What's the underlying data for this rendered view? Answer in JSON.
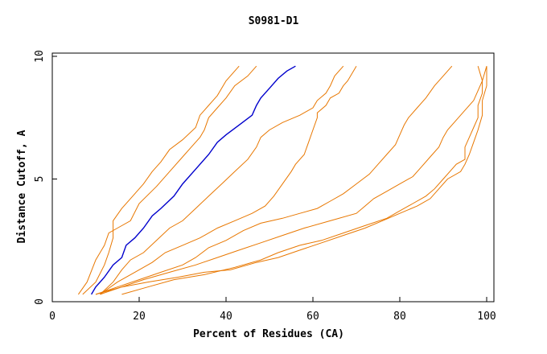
{
  "chart_data": {
    "type": "line",
    "title": "S0981-D1",
    "xlabel": "Percent of Residues (CA)",
    "ylabel": "Distance Cutoff, A",
    "xlim": [
      0,
      100
    ],
    "ylim": [
      0,
      10
    ],
    "xticks": [
      0,
      20,
      40,
      60,
      80,
      100
    ],
    "yticks": [
      0,
      5,
      10
    ],
    "grid": false,
    "legend": "none",
    "colors": {
      "highlight": "#0000cc",
      "other": "#e87700",
      "axis": "#000000"
    },
    "series": [
      {
        "highlight": true,
        "points": [
          [
            9,
            0.3
          ],
          [
            10,
            0.6
          ],
          [
            12,
            1.0
          ],
          [
            14,
            1.5
          ],
          [
            16,
            1.8
          ],
          [
            17,
            2.3
          ],
          [
            19,
            2.6
          ],
          [
            21,
            3.0
          ],
          [
            23,
            3.5
          ],
          [
            25,
            3.8
          ],
          [
            28,
            4.3
          ],
          [
            30,
            4.8
          ],
          [
            33,
            5.4
          ],
          [
            36,
            6.0
          ],
          [
            38,
            6.5
          ],
          [
            40,
            6.8
          ],
          [
            43,
            7.2
          ],
          [
            46,
            7.6
          ],
          [
            47,
            8.0
          ],
          [
            48,
            8.3
          ],
          [
            50,
            8.7
          ],
          [
            52,
            9.1
          ],
          [
            54,
            9.4
          ],
          [
            56,
            9.6
          ]
        ]
      },
      {
        "highlight": false,
        "points": [
          [
            6,
            0.3
          ],
          [
            8,
            0.8
          ],
          [
            10,
            1.7
          ],
          [
            12,
            2.3
          ],
          [
            13,
            2.8
          ],
          [
            15,
            3.0
          ],
          [
            18,
            3.3
          ],
          [
            20,
            4.0
          ],
          [
            24,
            4.7
          ],
          [
            27,
            5.3
          ],
          [
            30,
            5.9
          ],
          [
            32,
            6.3
          ],
          [
            34,
            6.7
          ],
          [
            35,
            7.0
          ],
          [
            36,
            7.5
          ],
          [
            38,
            7.9
          ],
          [
            40,
            8.3
          ],
          [
            42,
            8.8
          ],
          [
            45,
            9.2
          ],
          [
            47,
            9.6
          ]
        ]
      },
      {
        "highlight": false,
        "points": [
          [
            7,
            0.3
          ],
          [
            10,
            0.8
          ],
          [
            12,
            1.5
          ],
          [
            13,
            2.0
          ],
          [
            14,
            2.6
          ],
          [
            14,
            3.3
          ],
          [
            16,
            3.8
          ],
          [
            18,
            4.2
          ],
          [
            21,
            4.8
          ],
          [
            23,
            5.3
          ],
          [
            25,
            5.7
          ],
          [
            27,
            6.2
          ],
          [
            30,
            6.6
          ],
          [
            33,
            7.1
          ],
          [
            34,
            7.6
          ],
          [
            36,
            8.0
          ],
          [
            38,
            8.4
          ],
          [
            40,
            9.0
          ],
          [
            43,
            9.6
          ]
        ]
      },
      {
        "highlight": false,
        "points": [
          [
            11,
            0.3
          ],
          [
            14,
            0.8
          ],
          [
            16,
            1.3
          ],
          [
            18,
            1.7
          ],
          [
            21,
            2.0
          ],
          [
            24,
            2.5
          ],
          [
            27,
            3.0
          ],
          [
            30,
            3.3
          ],
          [
            33,
            3.8
          ],
          [
            36,
            4.3
          ],
          [
            39,
            4.8
          ],
          [
            42,
            5.3
          ],
          [
            45,
            5.8
          ],
          [
            47,
            6.3
          ],
          [
            48,
            6.7
          ],
          [
            50,
            7.0
          ],
          [
            53,
            7.3
          ],
          [
            57,
            7.6
          ],
          [
            60,
            7.9
          ],
          [
            61,
            8.2
          ],
          [
            63,
            8.5
          ],
          [
            64,
            8.8
          ],
          [
            65,
            9.2
          ],
          [
            67,
            9.6
          ]
        ]
      },
      {
        "highlight": false,
        "points": [
          [
            11,
            0.3
          ],
          [
            15,
            0.8
          ],
          [
            19,
            1.2
          ],
          [
            23,
            1.6
          ],
          [
            26,
            2.0
          ],
          [
            30,
            2.3
          ],
          [
            34,
            2.6
          ],
          [
            38,
            3.0
          ],
          [
            42,
            3.3
          ],
          [
            46,
            3.6
          ],
          [
            49,
            3.9
          ],
          [
            51,
            4.3
          ],
          [
            53,
            4.8
          ],
          [
            55,
            5.3
          ],
          [
            56,
            5.6
          ],
          [
            58,
            6.0
          ],
          [
            59,
            6.5
          ],
          [
            60,
            7.0
          ],
          [
            61,
            7.5
          ],
          [
            61,
            7.7
          ],
          [
            63,
            8.0
          ],
          [
            64,
            8.3
          ],
          [
            66,
            8.5
          ],
          [
            67,
            8.8
          ],
          [
            68,
            9.0
          ],
          [
            70,
            9.6
          ]
        ]
      },
      {
        "highlight": false,
        "points": [
          [
            10,
            0.3
          ],
          [
            15,
            0.6
          ],
          [
            20,
            0.9
          ],
          [
            25,
            1.2
          ],
          [
            30,
            1.5
          ],
          [
            33,
            1.8
          ],
          [
            36,
            2.2
          ],
          [
            40,
            2.5
          ],
          [
            44,
            2.9
          ],
          [
            48,
            3.2
          ],
          [
            53,
            3.4
          ],
          [
            57,
            3.6
          ],
          [
            61,
            3.8
          ],
          [
            64,
            4.1
          ],
          [
            67,
            4.4
          ],
          [
            70,
            4.8
          ],
          [
            73,
            5.2
          ],
          [
            75,
            5.6
          ],
          [
            77,
            6.0
          ],
          [
            79,
            6.4
          ],
          [
            80,
            6.8
          ],
          [
            81,
            7.2
          ],
          [
            82,
            7.5
          ],
          [
            84,
            7.9
          ],
          [
            86,
            8.3
          ],
          [
            88,
            8.8
          ],
          [
            90,
            9.2
          ],
          [
            92,
            9.6
          ]
        ]
      },
      {
        "highlight": false,
        "points": [
          [
            11,
            0.3
          ],
          [
            16,
            0.6
          ],
          [
            21,
            0.9
          ],
          [
            27,
            1.2
          ],
          [
            33,
            1.5
          ],
          [
            38,
            1.8
          ],
          [
            43,
            2.1
          ],
          [
            48,
            2.4
          ],
          [
            53,
            2.7
          ],
          [
            58,
            3.0
          ],
          [
            64,
            3.3
          ],
          [
            70,
            3.6
          ],
          [
            72,
            3.9
          ],
          [
            74,
            4.2
          ],
          [
            77,
            4.5
          ],
          [
            80,
            4.8
          ],
          [
            83,
            5.1
          ],
          [
            85,
            5.5
          ],
          [
            87,
            5.9
          ],
          [
            89,
            6.3
          ],
          [
            90,
            6.7
          ],
          [
            91,
            7.0
          ],
          [
            93,
            7.4
          ],
          [
            95,
            7.8
          ],
          [
            97,
            8.2
          ],
          [
            98,
            8.6
          ],
          [
            99,
            9.0
          ],
          [
            100,
            9.6
          ]
        ]
      },
      {
        "highlight": false,
        "points": [
          [
            16,
            0.3
          ],
          [
            22,
            0.6
          ],
          [
            28,
            0.9
          ],
          [
            35,
            1.1
          ],
          [
            42,
            1.4
          ],
          [
            48,
            1.7
          ],
          [
            52,
            2.0
          ],
          [
            57,
            2.3
          ],
          [
            62,
            2.5
          ],
          [
            67,
            2.8
          ],
          [
            72,
            3.1
          ],
          [
            77,
            3.4
          ],
          [
            80,
            3.7
          ],
          [
            83,
            4.0
          ],
          [
            86,
            4.3
          ],
          [
            88,
            4.6
          ],
          [
            90,
            5.0
          ],
          [
            92,
            5.4
          ],
          [
            93,
            5.6
          ],
          [
            95,
            5.8
          ],
          [
            95,
            6.3
          ],
          [
            96,
            6.7
          ],
          [
            97,
            7.1
          ],
          [
            98,
            7.5
          ],
          [
            98,
            8.0
          ],
          [
            99,
            8.5
          ],
          [
            99,
            9.0
          ],
          [
            98,
            9.6
          ]
        ]
      },
      {
        "highlight": false,
        "points": [
          [
            10,
            0.3
          ],
          [
            16,
            0.6
          ],
          [
            22,
            0.8
          ],
          [
            29,
            1.0
          ],
          [
            35,
            1.2
          ],
          [
            41,
            1.3
          ],
          [
            47,
            1.6
          ],
          [
            52,
            1.8
          ],
          [
            57,
            2.1
          ],
          [
            62,
            2.4
          ],
          [
            67,
            2.7
          ],
          [
            72,
            3.0
          ],
          [
            76,
            3.3
          ],
          [
            80,
            3.6
          ],
          [
            84,
            3.9
          ],
          [
            87,
            4.2
          ],
          [
            89,
            4.6
          ],
          [
            91,
            5.0
          ],
          [
            94,
            5.3
          ],
          [
            95,
            5.6
          ],
          [
            96,
            6.0
          ],
          [
            97,
            6.5
          ],
          [
            98,
            7.0
          ],
          [
            99,
            7.6
          ],
          [
            99,
            8.2
          ],
          [
            100,
            8.8
          ],
          [
            100,
            9.6
          ]
        ]
      }
    ]
  }
}
